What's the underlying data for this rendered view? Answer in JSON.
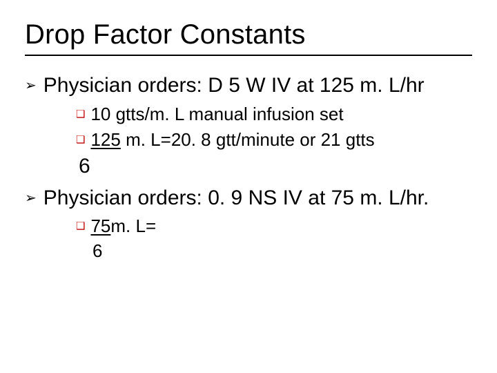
{
  "colors": {
    "text": "#000000",
    "background": "#ffffff",
    "square_bullet": "#c00000",
    "rule": "#000000"
  },
  "typography": {
    "family": "Arial",
    "title_fontsize": 40,
    "lvl1_fontsize": 30,
    "lvl2_fontsize": 26
  },
  "title": "Drop Factor Constants",
  "items": [
    {
      "bullet_glyph": "➢",
      "text": "Physician orders:  D 5 W IV at 125 m. L/hr",
      "sub": [
        {
          "bullet_glyph": "❑",
          "text": "10 gtts/m. L manual infusion set"
        },
        {
          "bullet_glyph": "❑",
          "num": "125",
          "rest": " m. L=20. 8 gtt/minute or 21 gtts",
          "denom": "  6"
        }
      ]
    },
    {
      "bullet_glyph": "➢",
      "text": "Physician orders:  0. 9 NS IV at 75 m. L/hr.",
      "sub": [
        {
          "bullet_glyph": "❑",
          "num": "75",
          "rest": "m. L=",
          "denom": " 6"
        }
      ]
    }
  ]
}
